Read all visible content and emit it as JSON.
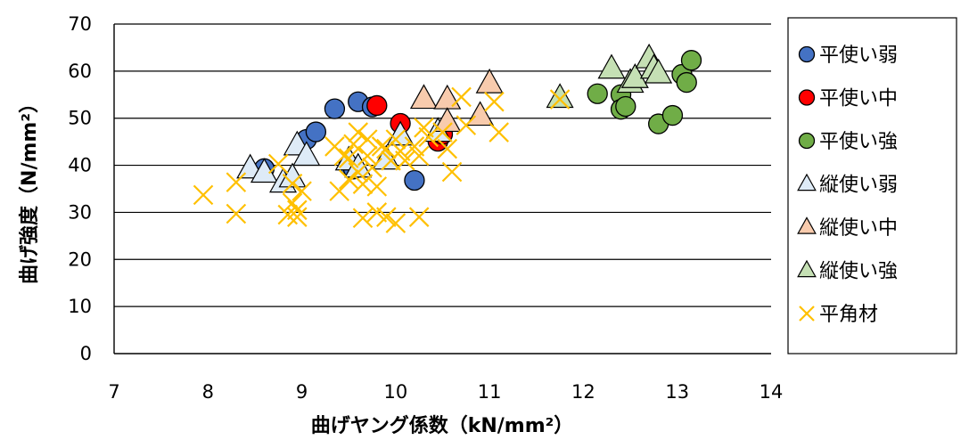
{
  "chart_data": {
    "type": "scatter",
    "xlabel": "曲げヤング係数（kN/mm²）",
    "ylabel": "曲げ強度（N/mm²）",
    "xlim": [
      7,
      14
    ],
    "ylim": [
      0,
      70
    ],
    "x_ticks": [
      "7",
      "8",
      "9",
      "10",
      "11",
      "12",
      "13",
      "14"
    ],
    "y_ticks": [
      "0",
      "10",
      "20",
      "30",
      "40",
      "50",
      "60",
      "70"
    ],
    "grid": "horizontal",
    "legend_position": "right",
    "series": [
      {
        "name": "平使い弱",
        "marker": "circle",
        "fill": "#4472C4",
        "stroke": "#000000",
        "points": [
          [
            8.6,
            39.3
          ],
          [
            9.05,
            45.5
          ],
          [
            9.15,
            47.1
          ],
          [
            9.35,
            52.0
          ],
          [
            9.6,
            53.5
          ],
          [
            9.5,
            40.0
          ],
          [
            9.55,
            39.2
          ],
          [
            9.75,
            52.4
          ],
          [
            10.2,
            36.8
          ]
        ]
      },
      {
        "name": "平使い中",
        "marker": "circle",
        "fill": "#FF0000",
        "stroke": "#000000",
        "points": [
          [
            9.8,
            52.7
          ],
          [
            10.05,
            48.9
          ],
          [
            10.45,
            45.1
          ],
          [
            10.5,
            46.6
          ]
        ]
      },
      {
        "name": "平使い強",
        "marker": "circle",
        "fill": "#70AD47",
        "stroke": "#000000",
        "points": [
          [
            12.15,
            55.2
          ],
          [
            12.4,
            55.0
          ],
          [
            12.4,
            51.9
          ],
          [
            12.45,
            52.5
          ],
          [
            12.8,
            48.8
          ],
          [
            12.95,
            50.6
          ],
          [
            13.05,
            59.3
          ],
          [
            13.1,
            57.6
          ],
          [
            13.15,
            62.3
          ]
        ]
      },
      {
        "name": "縦使い弱",
        "marker": "triangle",
        "fill": "#DEEBF7",
        "stroke": "#000000",
        "points": [
          [
            8.45,
            39.3
          ],
          [
            8.6,
            38.4
          ],
          [
            8.8,
            36.3
          ],
          [
            8.9,
            37.4
          ],
          [
            8.95,
            44.2
          ],
          [
            9.05,
            42.0
          ],
          [
            9.5,
            41.0
          ],
          [
            9.6,
            39.5
          ],
          [
            9.9,
            41.2
          ],
          [
            10.05,
            46.3
          ],
          [
            10.45,
            47.1
          ]
        ]
      },
      {
        "name": "縦使い中",
        "marker": "triangle",
        "fill": "#F8CBAD",
        "stroke": "#000000",
        "points": [
          [
            10.3,
            54.1
          ],
          [
            10.55,
            54.0
          ],
          [
            10.55,
            49.2
          ],
          [
            10.9,
            50.5
          ],
          [
            11.0,
            57.4
          ]
        ]
      },
      {
        "name": "縦使い強",
        "marker": "triangle",
        "fill": "#C5E0B4",
        "stroke": "#000000",
        "points": [
          [
            11.75,
            54.3
          ],
          [
            12.3,
            60.5
          ],
          [
            12.5,
            57.5
          ],
          [
            12.55,
            58.5
          ],
          [
            12.7,
            62.7
          ],
          [
            12.75,
            60.5
          ],
          [
            12.8,
            59.5
          ]
        ]
      },
      {
        "name": "平角材",
        "marker": "x",
        "fill": "none",
        "stroke": "#FFC000",
        "points": [
          [
            7.95,
            33.7
          ],
          [
            8.3,
            29.7
          ],
          [
            8.3,
            36.4
          ],
          [
            8.75,
            40.3
          ],
          [
            8.85,
            29.5
          ],
          [
            8.9,
            32.0
          ],
          [
            8.9,
            36.1
          ],
          [
            8.95,
            29.0
          ],
          [
            8.95,
            30.5
          ],
          [
            9.0,
            34.5
          ],
          [
            9.35,
            44.0
          ],
          [
            9.4,
            34.5
          ],
          [
            9.45,
            42.0
          ],
          [
            9.5,
            37.0
          ],
          [
            9.5,
            41.5
          ],
          [
            9.55,
            44.5
          ],
          [
            9.6,
            38.5
          ],
          [
            9.6,
            47.0
          ],
          [
            9.65,
            36.0
          ],
          [
            9.65,
            28.8
          ],
          [
            9.7,
            42.0
          ],
          [
            9.7,
            45.5
          ],
          [
            9.75,
            39.5
          ],
          [
            9.8,
            30.0
          ],
          [
            9.8,
            35.5
          ],
          [
            9.85,
            44.0
          ],
          [
            9.9,
            29.0
          ],
          [
            9.9,
            43.5
          ],
          [
            9.95,
            41.0
          ],
          [
            10.0,
            27.7
          ],
          [
            10.0,
            45.5
          ],
          [
            10.05,
            43.0
          ],
          [
            10.1,
            41.0
          ],
          [
            10.2,
            44.0
          ],
          [
            10.25,
            29.0
          ],
          [
            10.25,
            42.0
          ],
          [
            10.3,
            48.0
          ],
          [
            10.35,
            46.0
          ],
          [
            10.5,
            47.0
          ],
          [
            10.55,
            43.5
          ],
          [
            10.6,
            38.6
          ],
          [
            10.7,
            54.5
          ],
          [
            10.75,
            48.5
          ],
          [
            11.05,
            53.5
          ],
          [
            11.1,
            47.0
          ],
          [
            11.75,
            54.0
          ]
        ]
      }
    ]
  }
}
